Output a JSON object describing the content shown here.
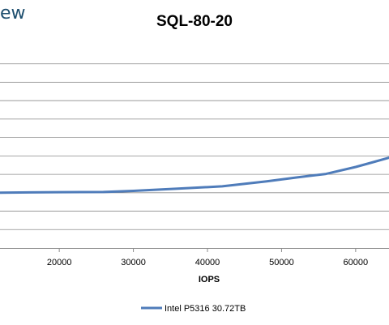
{
  "brand_fragment": "ew",
  "chart_data": {
    "type": "line",
    "title": "SQL-80-20",
    "xlabel": "IOPS",
    "ylabel": "",
    "xlim": [
      12000,
      64500
    ],
    "ylim": [
      0,
      11
    ],
    "x_ticks": [
      "20000",
      "30000",
      "40000",
      "50000",
      "60000"
    ],
    "x_tick_values": [
      20000,
      30000,
      40000,
      50000,
      60000
    ],
    "grid": "horizontal",
    "legend_position": "bottom",
    "series": [
      {
        "name": "Intel P5316 30.72TB",
        "color": "#4f7cba",
        "x": [
          12000,
          16000,
          20000,
          26000,
          30000,
          36000,
          42000,
          48000,
          52000,
          56000,
          60000,
          62000,
          64500
        ],
        "y": [
          3.0,
          3.02,
          3.03,
          3.04,
          3.1,
          3.22,
          3.35,
          3.62,
          3.83,
          4.02,
          4.4,
          4.62,
          4.9
        ]
      }
    ]
  }
}
